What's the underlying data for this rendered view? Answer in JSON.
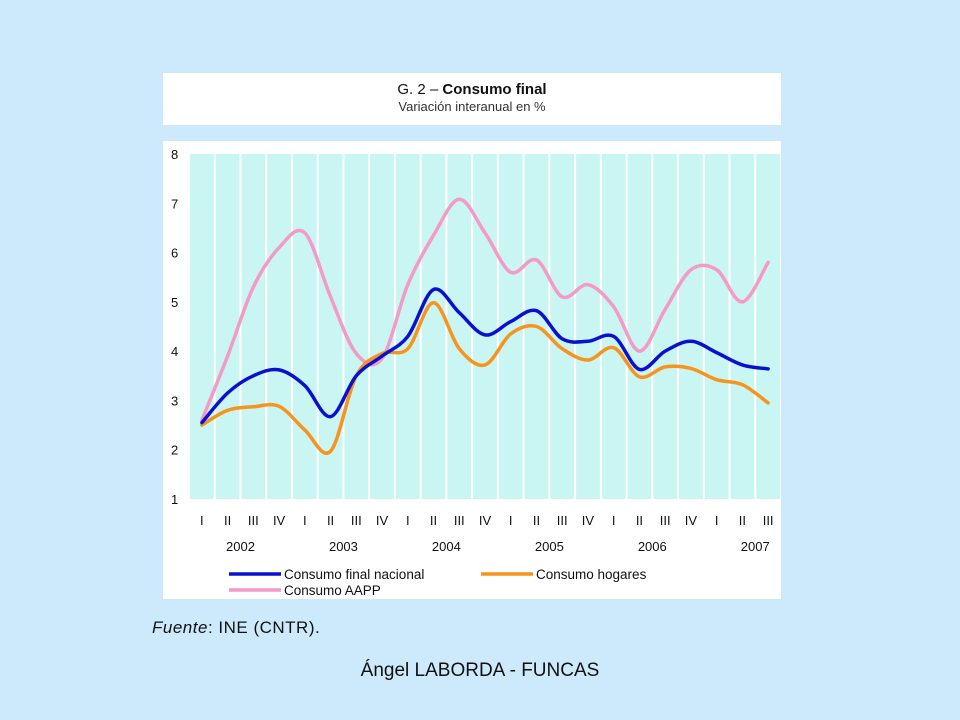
{
  "title": {
    "prefix": "G. 2 – ",
    "main": "Consumo final"
  },
  "subtitle": "Variación interanual en %",
  "source": {
    "label": "Fuente",
    "text": ": INE (CNTR)."
  },
  "footer": "Ángel LABORDA - FUNCAS",
  "chart_data": {
    "type": "line",
    "title": "G. 2 – Consumo final",
    "subtitle": "Variación interanual en %",
    "x": [
      "I",
      "II",
      "III",
      "IV",
      "I",
      "II",
      "III",
      "IV",
      "I",
      "II",
      "III",
      "IV",
      "I",
      "II",
      "III",
      "IV",
      "I",
      "II",
      "III",
      "IV",
      "I",
      "II",
      "III"
    ],
    "years": [
      "2002",
      "2003",
      "2004",
      "2005",
      "2006",
      "2007"
    ],
    "ylim": [
      1,
      8
    ],
    "yticks": [
      1,
      2,
      3,
      4,
      5,
      6,
      7,
      8
    ],
    "grid": true,
    "legend_position": "bottom",
    "series": [
      {
        "name": "Consumo final nacional",
        "color": "#0a10d0",
        "values": [
          2.55,
          3.15,
          3.5,
          3.62,
          3.3,
          2.67,
          3.5,
          3.9,
          4.3,
          5.25,
          4.78,
          4.33,
          4.6,
          4.82,
          4.25,
          4.2,
          4.3,
          3.63,
          4.0,
          4.2,
          3.97,
          3.72,
          3.64
        ]
      },
      {
        "name": "Consumo hogares",
        "color": "#f7941d",
        "values": [
          2.5,
          2.8,
          2.87,
          2.88,
          2.4,
          1.97,
          3.5,
          3.95,
          4.05,
          4.98,
          4.05,
          3.72,
          4.35,
          4.5,
          4.05,
          3.82,
          4.07,
          3.48,
          3.68,
          3.65,
          3.42,
          3.32,
          2.95
        ]
      },
      {
        "name": "Consumo AAPP",
        "color": "#f59ac6",
        "values": [
          2.6,
          3.9,
          5.3,
          6.1,
          6.4,
          5.1,
          3.95,
          3.85,
          5.35,
          6.35,
          7.08,
          6.4,
          5.6,
          5.85,
          5.1,
          5.35,
          4.9,
          4.0,
          4.85,
          5.65,
          5.65,
          5.0,
          5.8
        ]
      }
    ]
  }
}
